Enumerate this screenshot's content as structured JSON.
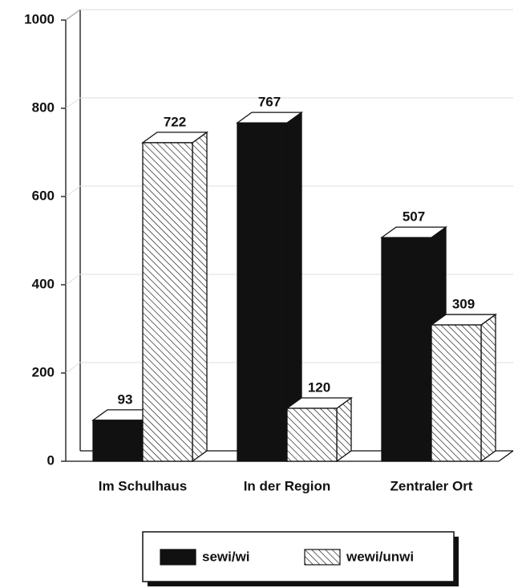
{
  "chart_data": {
    "type": "bar",
    "categories": [
      "Im Schulhaus",
      "In der Region",
      "Zentraler Ort"
    ],
    "series": [
      {
        "name": "sewi/wi",
        "color": "#111111",
        "values": [
          93,
          767,
          507
        ]
      },
      {
        "name": "wewi/unwi",
        "color": "#ffffff",
        "pattern": "hatch",
        "values": [
          722,
          120,
          309
        ]
      }
    ],
    "ylim": [
      0,
      1000
    ],
    "yticks": [
      0,
      200,
      400,
      600,
      800,
      1000
    ],
    "grid": true,
    "legend": "bottom"
  }
}
